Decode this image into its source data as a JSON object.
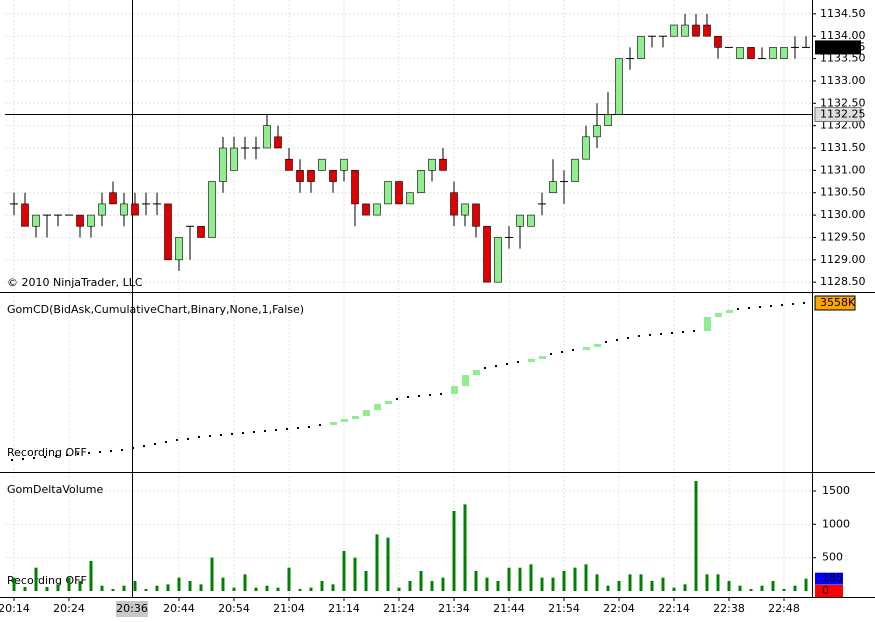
{
  "chart_data": [
    {
      "type": "candlestick",
      "copyright": "© 2010 NinjaTrader, LLC",
      "open": [
        1130.25,
        1130.25,
        1129.75,
        1130.0,
        1130.0,
        1130.0,
        1130.0,
        1129.75,
        1130.0,
        1130.5,
        1130.0,
        1130.25,
        1130.25,
        1130.25,
        1130.25,
        1129.0,
        1129.75,
        1129.75,
        1129.5,
        1130.75,
        1131.0,
        1131.5,
        1131.5,
        1131.5,
        1131.75,
        1131.25,
        1131.0,
        1131.0,
        1131.0,
        1131.0,
        1131.0,
        1131.0,
        1130.25,
        1130.0,
        1130.25,
        1130.75,
        1130.25,
        1130.5,
        1131.0,
        1131.25,
        1130.5,
        1130.0,
        1130.25,
        1129.75,
        1128.5,
        1129.5,
        1129.75,
        1129.75,
        1130.25,
        1130.5,
        1130.75,
        1130.75,
        1131.25,
        1131.75,
        1132.0,
        1132.25,
        1133.5,
        1133.5,
        1134.0,
        1134.0,
        1134.0,
        1134.0,
        1134.25,
        1134.25,
        1134.0,
        1133.75,
        1133.5,
        1133.75,
        1133.5,
        1133.5,
        1133.5,
        1133.75,
        1133.75
      ],
      "high": [
        1130.5,
        1130.5,
        1130.0,
        1130.0,
        1130.0,
        1130.0,
        1130.0,
        1130.0,
        1130.5,
        1130.75,
        1130.5,
        1130.5,
        1130.5,
        1130.5,
        1130.25,
        1129.5,
        1129.75,
        1129.75,
        1130.75,
        1131.75,
        1131.75,
        1131.75,
        1131.75,
        1132.25,
        1132.0,
        1131.5,
        1131.25,
        1131.0,
        1131.25,
        1131.0,
        1131.25,
        1131.0,
        1130.25,
        1130.25,
        1130.75,
        1130.75,
        1130.5,
        1131.0,
        1131.25,
        1131.5,
        1130.75,
        1130.25,
        1130.25,
        1129.75,
        1129.5,
        1129.75,
        1130.0,
        1130.0,
        1130.5,
        1131.25,
        1131.0,
        1131.25,
        1132.0,
        1132.5,
        1132.75,
        1133.5,
        1133.75,
        1134.0,
        1134.0,
        1134.0,
        1134.25,
        1134.5,
        1134.5,
        1134.5,
        1134.0,
        1133.75,
        1133.75,
        1133.75,
        1133.75,
        1133.75,
        1133.75,
        1134.0,
        1134.0
      ],
      "low": [
        1130.0,
        1129.75,
        1129.5,
        1129.5,
        1129.75,
        1130.0,
        1129.5,
        1129.5,
        1129.75,
        1130.25,
        1129.75,
        1130.0,
        1130.0,
        1130.0,
        1129.0,
        1128.75,
        1129.0,
        1129.5,
        1129.5,
        1130.5,
        1131.0,
        1131.25,
        1131.25,
        1131.5,
        1131.5,
        1131.0,
        1130.5,
        1130.5,
        1131.0,
        1130.5,
        1130.75,
        1129.75,
        1130.0,
        1130.0,
        1130.25,
        1130.25,
        1130.25,
        1130.5,
        1130.75,
        1131.0,
        1129.75,
        1129.75,
        1129.5,
        1128.5,
        1128.5,
        1129.25,
        1129.25,
        1129.75,
        1130.0,
        1130.5,
        1130.25,
        1130.75,
        1131.25,
        1131.5,
        1132.0,
        1132.25,
        1133.25,
        1133.5,
        1133.75,
        1133.75,
        1134.0,
        1134.0,
        1134.0,
        1134.0,
        1133.5,
        1133.75,
        1133.5,
        1133.5,
        1133.5,
        1133.5,
        1133.5,
        1133.5,
        1133.75
      ],
      "close": [
        1130.25,
        1129.75,
        1130.0,
        1130.0,
        1130.0,
        1130.0,
        1129.75,
        1130.0,
        1130.25,
        1130.25,
        1130.25,
        1130.0,
        1130.25,
        1130.25,
        1129.0,
        1129.5,
        1129.75,
        1129.5,
        1130.75,
        1131.5,
        1131.5,
        1131.5,
        1131.5,
        1132.0,
        1131.5,
        1131.0,
        1130.75,
        1130.75,
        1131.25,
        1130.75,
        1131.25,
        1130.25,
        1130.0,
        1130.25,
        1130.75,
        1130.25,
        1130.5,
        1131.0,
        1131.25,
        1131.0,
        1130.0,
        1130.25,
        1129.75,
        1128.5,
        1129.5,
        1129.5,
        1130.0,
        1130.0,
        1130.25,
        1130.75,
        1130.75,
        1131.25,
        1131.75,
        1132.0,
        1132.25,
        1133.5,
        1133.5,
        1134.0,
        1134.0,
        1134.0,
        1134.25,
        1134.25,
        1134.0,
        1134.0,
        1133.75,
        1133.75,
        1133.75,
        1133.5,
        1133.5,
        1133.75,
        1133.75,
        1133.75,
        1133.75
      ],
      "up_color": "#90ee90",
      "down_color": "#e00000",
      "doji_color": "#000000",
      "ylim": [
        1128.28,
        1134.81
      ],
      "yticks": [
        {
          "value": 1128.5,
          "label": "1128.50"
        },
        {
          "value": 1129,
          "label": "1129.00"
        },
        {
          "value": 1129.5,
          "label": "1129.50"
        },
        {
          "value": 1130,
          "label": "1130.00"
        },
        {
          "value": 1130.5,
          "label": "1130.50"
        },
        {
          "value": 1131,
          "label": "1131.00"
        },
        {
          "value": 1131.5,
          "label": "1131.50"
        },
        {
          "value": 1132,
          "label": "1132.00"
        },
        {
          "value": 1132.5,
          "label": "1132.50"
        },
        {
          "value": 1133,
          "label": "1133.00"
        },
        {
          "value": 1133.5,
          "label": "1133.50"
        },
        {
          "value": 1134,
          "label": "1134.00"
        },
        {
          "value": 1134.5,
          "label": "1134.50"
        }
      ],
      "grid": true,
      "last_price": {
        "value": 1133.75,
        "label": "1133.75"
      },
      "crosshair_price": {
        "value": 1132.25,
        "label": "1132.25"
      }
    },
    {
      "type": "cumulative",
      "title": "GomCD(BidAsk,CumulativeChart,Binary,None,1,False)",
      "status": "Recording OFF",
      "values": [
        418,
        438,
        458,
        478,
        498,
        518,
        538,
        558,
        578,
        598,
        618,
        658,
        698,
        738,
        778,
        818,
        838,
        878,
        898,
        918,
        938,
        958,
        978,
        998,
        1018,
        1038,
        1058,
        1078,
        1118,
        1178,
        1238,
        1298,
        1418,
        1538,
        1598,
        1638,
        1678,
        1698,
        1718,
        1738,
        1898,
        2118,
        2218,
        2258,
        2298,
        2338,
        2378,
        2438,
        2498,
        2538,
        2578,
        2618,
        2678,
        2738,
        2778,
        2818,
        2858,
        2898,
        2918,
        2938,
        2958,
        2978,
        2998,
        3278,
        3358,
        3418,
        3438,
        3458,
        3478,
        3498,
        3518,
        3538,
        3558
      ],
      "color": "#90ee90",
      "small_color": "#000000",
      "ylim": [
        178,
        3758
      ],
      "last_value_label": "3558K"
    },
    {
      "type": "bar",
      "title": "GomDeltaVolume",
      "status": "Recording OFF",
      "categories": [
        "20:14",
        null,
        null,
        null,
        null,
        "20:24",
        null,
        null,
        null,
        null,
        null,
        null,
        null,
        null,
        null,
        "20:44",
        null,
        null,
        null,
        null,
        "20:54",
        null,
        null,
        null,
        null,
        "21:04",
        null,
        null,
        null,
        null,
        "21:14",
        null,
        null,
        null,
        null,
        "21:24",
        null,
        null,
        null,
        null,
        "21:34",
        null,
        null,
        null,
        null,
        "21:44",
        null,
        null,
        null,
        null,
        "21:54",
        null,
        null,
        null,
        null,
        "22:04",
        null,
        null,
        null,
        null,
        "22:14",
        null,
        null,
        null,
        null,
        "22:38",
        null,
        null,
        null,
        null,
        "22:48",
        null,
        null
      ],
      "crosshair_category": "20:36",
      "values": [
        200,
        60,
        350,
        60,
        100,
        200,
        150,
        450,
        80,
        30,
        80,
        150,
        30,
        80,
        100,
        200,
        150,
        100,
        500,
        200,
        50,
        250,
        50,
        80,
        50,
        350,
        30,
        50,
        150,
        100,
        600,
        500,
        300,
        850,
        800,
        50,
        150,
        300,
        150,
        200,
        1200,
        1300,
        300,
        200,
        150,
        350,
        350,
        400,
        200,
        200,
        300,
        350,
        400,
        250,
        80,
        150,
        250,
        250,
        150,
        200,
        50,
        100,
        1650,
        250,
        250,
        150,
        80,
        30,
        80,
        150,
        30,
        80,
        185
      ],
      "color": "#008000",
      "ylim": [
        -90,
        1770
      ],
      "yticks": [
        500,
        1000,
        1500
      ],
      "grid": true,
      "value_boxes": [
        {
          "value": 185,
          "label": "185",
          "color": "#0000ff"
        },
        {
          "value": 0,
          "label": "0",
          "color": "#ff0000"
        }
      ]
    }
  ]
}
